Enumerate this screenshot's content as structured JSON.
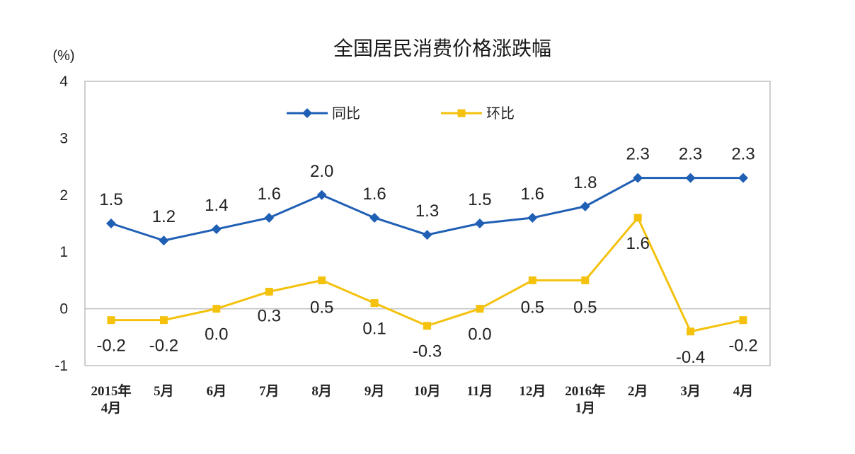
{
  "chart_data": {
    "type": "line",
    "title": "全国居民消费价格涨跌幅",
    "unit_label": "(%)",
    "yticks": [
      "4",
      "3",
      "2",
      "1",
      "0",
      "-1"
    ],
    "ylim": [
      -1,
      4
    ],
    "categories": [
      [
        "2015年",
        "4月"
      ],
      [
        "5月"
      ],
      [
        "6月"
      ],
      [
        "7月"
      ],
      [
        "8月"
      ],
      [
        "9月"
      ],
      [
        "10月"
      ],
      [
        "11月"
      ],
      [
        "12月"
      ],
      [
        "2016年",
        "1月"
      ],
      [
        "2月"
      ],
      [
        "3月"
      ],
      [
        "4月"
      ]
    ],
    "series": [
      {
        "name": "同比",
        "color": "#1f5fb4",
        "marker": "diamond",
        "values": [
          1.5,
          1.2,
          1.4,
          1.6,
          2.0,
          1.6,
          1.3,
          1.5,
          1.6,
          1.8,
          2.3,
          2.3,
          2.3
        ],
        "labels": [
          "1.5",
          "1.2",
          "1.4",
          "1.6",
          "2.0",
          "1.6",
          "1.3",
          "1.5",
          "1.6",
          "1.8",
          "2.3",
          "2.3",
          "2.3"
        ]
      },
      {
        "name": "环比",
        "color": "#f4c20d",
        "marker": "square",
        "values": [
          -0.2,
          -0.2,
          0.0,
          0.3,
          0.5,
          0.1,
          -0.3,
          0.0,
          0.5,
          0.5,
          1.6,
          -0.4,
          -0.2
        ],
        "labels": [
          "-0.2",
          "-0.2",
          "0.0",
          "0.3",
          "0.5",
          "0.1",
          "-0.3",
          "0.0",
          "0.5",
          "0.5",
          "1.6",
          "-0.4",
          "-0.2"
        ]
      }
    ],
    "legend_position": "top"
  }
}
